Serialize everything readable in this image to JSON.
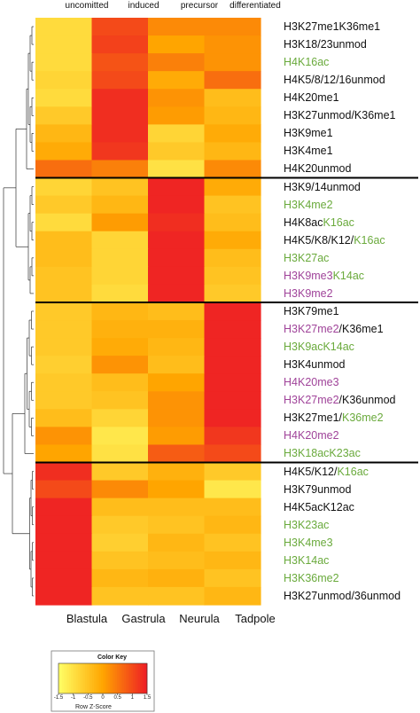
{
  "chart_data": {
    "type": "heatmap",
    "columns_top": [
      "uncomitted",
      "induced",
      "precursor",
      "differentiated"
    ],
    "columns": [
      "Blastula",
      "Gastrula",
      "Neurula",
      "Tadpole"
    ],
    "rows": [
      {
        "label": "H3K27me1K36me1",
        "segments": [
          {
            "text": "H3K27me1K36me1",
            "color": "black"
          }
        ],
        "values": [
          -0.9,
          1.0,
          0.3,
          0.3
        ]
      },
      {
        "label": "H3K18/23unmod",
        "segments": [
          {
            "text": "H3K18/23unmod",
            "color": "black"
          }
        ],
        "values": [
          -0.9,
          1.1,
          0.0,
          0.2
        ]
      },
      {
        "label": "H4K16ac",
        "segments": [
          {
            "text": "H4K16ac",
            "color": "green"
          }
        ],
        "values": [
          -0.9,
          0.9,
          0.4,
          0.2
        ]
      },
      {
        "label": "H4K5/8/12/16unmod",
        "segments": [
          {
            "text": "H4K5/8/12/16unmod",
            "color": "black"
          }
        ],
        "values": [
          -0.8,
          1.0,
          -0.1,
          0.6
        ]
      },
      {
        "label": "H4K20me1",
        "segments": [
          {
            "text": "H4K20me1",
            "color": "black"
          }
        ],
        "values": [
          -0.9,
          1.3,
          0.2,
          -0.4
        ]
      },
      {
        "label": "H3K27unmod/K36me1",
        "segments": [
          {
            "text": "H3K27unmod/K36me1",
            "color": "black"
          }
        ],
        "values": [
          -0.6,
          1.3,
          0.1,
          -0.3
        ]
      },
      {
        "label": "H3K9me1",
        "segments": [
          {
            "text": "H3K9me1",
            "color": "black"
          }
        ],
        "values": [
          -0.3,
          1.3,
          -0.8,
          -0.1
        ]
      },
      {
        "label": "H3K4me1",
        "segments": [
          {
            "text": "H3K4me1",
            "color": "black"
          }
        ],
        "values": [
          -0.1,
          1.2,
          -0.6,
          -0.3
        ]
      },
      {
        "label": "H4K20unmod",
        "segments": [
          {
            "text": "H4K20unmod",
            "color": "black"
          }
        ],
        "values": [
          0.6,
          0.4,
          -1.0,
          0.3
        ]
      },
      {
        "label": "H3K9/14unmod",
        "segments": [
          {
            "text": "H3K9/14unmod",
            "color": "black"
          }
        ],
        "values": [
          -0.8,
          -0.5,
          1.4,
          -0.1
        ]
      },
      {
        "label": "H3K4me2",
        "segments": [
          {
            "text": "H3K4me2",
            "color": "green"
          }
        ],
        "values": [
          -0.6,
          -0.3,
          1.4,
          -0.5
        ]
      },
      {
        "label": "H4K8acK16ac",
        "segments": [
          {
            "text": "H4K8ac",
            "color": "black"
          },
          {
            "text": "K16ac",
            "color": "green"
          }
        ],
        "values": [
          -0.9,
          0.1,
          1.3,
          -0.4
        ]
      },
      {
        "label": "H4K5/K8/K12/K16ac",
        "segments": [
          {
            "text": "H4K5/K8/K12/",
            "color": "black"
          },
          {
            "text": "K16ac",
            "color": "green"
          }
        ],
        "values": [
          -0.4,
          -0.8,
          1.4,
          -0.1
        ]
      },
      {
        "label": "H3K27ac",
        "segments": [
          {
            "text": "H3K27ac",
            "color": "green"
          }
        ],
        "values": [
          -0.4,
          -0.8,
          1.4,
          -0.4
        ]
      },
      {
        "label": "H3K9me3K14ac",
        "segments": [
          {
            "text": "H3K9me3",
            "color": "purple"
          },
          {
            "text": "K14ac",
            "color": "green"
          }
        ],
        "values": [
          -0.5,
          -0.8,
          1.4,
          -0.5
        ]
      },
      {
        "label": "H3K9me2",
        "segments": [
          {
            "text": "H3K9me2",
            "color": "purple"
          }
        ],
        "values": [
          -0.5,
          -0.9,
          1.4,
          -0.6
        ]
      },
      {
        "label": "H3K79me1",
        "segments": [
          {
            "text": "H3K79me1",
            "color": "black"
          }
        ],
        "values": [
          -0.6,
          -0.3,
          -0.4,
          1.4
        ]
      },
      {
        "label": "H3K27me2/K36me1",
        "segments": [
          {
            "text": "H3K27me2",
            "color": "purple"
          },
          {
            "text": "/K36me1",
            "color": "black"
          }
        ],
        "values": [
          -0.6,
          -0.2,
          -0.2,
          1.4
        ]
      },
      {
        "label": "H3K9acK14ac",
        "segments": [
          {
            "text": "H3K9acK14ac",
            "color": "green"
          }
        ],
        "values": [
          -0.6,
          -0.1,
          -0.3,
          1.4
        ]
      },
      {
        "label": "H3K4unmod",
        "segments": [
          {
            "text": "H3K4unmod",
            "color": "black"
          }
        ],
        "values": [
          -0.7,
          0.2,
          -0.4,
          1.4
        ]
      },
      {
        "label": "H4K20me3",
        "segments": [
          {
            "text": "H4K20me3",
            "color": "purple"
          }
        ],
        "values": [
          -0.6,
          -0.4,
          0.0,
          1.4
        ]
      },
      {
        "label": "H3K27me2/K36unmod",
        "segments": [
          {
            "text": "H3K27me2",
            "color": "purple"
          },
          {
            "text": "/K36unmod",
            "color": "black"
          }
        ],
        "values": [
          -0.6,
          -0.5,
          0.2,
          1.4
        ]
      },
      {
        "label": "H3K27me1/K36me2",
        "segments": [
          {
            "text": "H3K27me1/",
            "color": "black"
          },
          {
            "text": "K36me2",
            "color": "green"
          }
        ],
        "values": [
          -0.4,
          -0.8,
          0.2,
          1.4
        ]
      },
      {
        "label": "H4K20me2",
        "segments": [
          {
            "text": "H4K20me2",
            "color": "purple"
          }
        ],
        "values": [
          0.2,
          -1.1,
          0.1,
          1.2
        ]
      },
      {
        "label": "H3K18acK23ac",
        "segments": [
          {
            "text": "H3K18acK23ac",
            "color": "green"
          }
        ],
        "values": [
          0.0,
          -1.0,
          0.8,
          1.0
        ]
      },
      {
        "label": "H4K5/K12/K16ac",
        "segments": [
          {
            "text": "H4K5/K12/",
            "color": "black"
          },
          {
            "text": "K16ac",
            "color": "green"
          }
        ],
        "values": [
          1.3,
          -0.6,
          -0.2,
          -0.6
        ]
      },
      {
        "label": "H3K79unmod",
        "segments": [
          {
            "text": "H3K79unmod",
            "color": "black"
          }
        ],
        "values": [
          1.0,
          0.3,
          0.0,
          -1.1
        ]
      },
      {
        "label": "H4K5acK12ac",
        "segments": [
          {
            "text": "H4K5acK12ac",
            "color": "black"
          }
        ],
        "values": [
          1.4,
          -0.4,
          -0.4,
          -0.4
        ]
      },
      {
        "label": "H3K23ac",
        "segments": [
          {
            "text": "H3K23ac",
            "color": "green"
          }
        ],
        "values": [
          1.4,
          -0.6,
          -0.5,
          -0.3
        ]
      },
      {
        "label": "H3K4me3",
        "segments": [
          {
            "text": "H3K4me3",
            "color": "green"
          }
        ],
        "values": [
          1.4,
          -0.7,
          -0.3,
          -0.5
        ]
      },
      {
        "label": "H3K14ac",
        "segments": [
          {
            "text": "H3K14ac",
            "color": "green"
          }
        ],
        "values": [
          1.4,
          -0.5,
          -0.4,
          -0.3
        ]
      },
      {
        "label": "H3K36me2",
        "segments": [
          {
            "text": "H3K36me2",
            "color": "green"
          }
        ],
        "values": [
          1.4,
          -0.3,
          -0.2,
          -0.5
        ]
      },
      {
        "label": "H3K27unmod/36unmod",
        "segments": [
          {
            "text": "H3K27unmod/36unmod",
            "color": "black"
          }
        ],
        "values": [
          1.4,
          -0.5,
          -0.5,
          -0.3
        ]
      }
    ],
    "cluster_breaks_after_row": [
      8,
      15,
      24
    ],
    "color_scale": {
      "min": -1.5,
      "max": 1.5,
      "low": "#ffff66",
      "mid": "#ffa500",
      "high": "#ee1c25"
    },
    "color_key": {
      "title": "Color Key",
      "axis_label": "Row Z-Score",
      "ticks": [
        "-1.5",
        "-1",
        "-0.5",
        "0",
        "0.5",
        "1",
        "1.5"
      ],
      "tick_values": [
        -1.5,
        -1,
        -0.5,
        0,
        0.5,
        1,
        1.5
      ]
    },
    "label_colors": {
      "black": "#111111",
      "green": "#6aaa3c",
      "purple": "#a0449a"
    }
  }
}
